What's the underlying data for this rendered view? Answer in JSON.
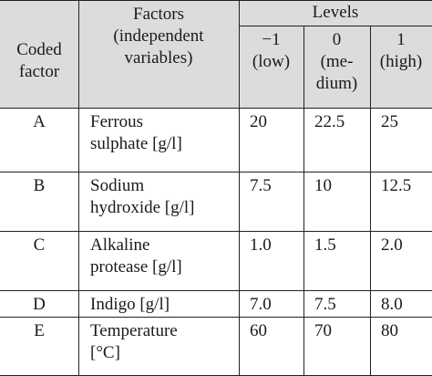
{
  "table": {
    "header": {
      "coded_factor": [
        "Coded",
        "factor"
      ],
      "factors": [
        "Factors",
        "(independent",
        "variables)"
      ],
      "levels": "Levels",
      "level_columns": [
        [
          "−1",
          "(low)"
        ],
        [
          "0",
          "(me-",
          "dium)"
        ],
        [
          "1",
          "(high)"
        ]
      ]
    },
    "rows": [
      {
        "code": "A",
        "factor": [
          "Ferrous",
          "sulphate [g/l]"
        ],
        "levels": [
          "20",
          "22.5",
          "25"
        ]
      },
      {
        "code": "B",
        "factor": [
          "Sodium",
          "hydroxide [g/l]"
        ],
        "levels": [
          "7.5",
          "10",
          "12.5"
        ]
      },
      {
        "code": "C",
        "factor": [
          "Alkaline",
          "protease [g/l]"
        ],
        "levels": [
          "1.0",
          "1.5",
          "2.0"
        ]
      },
      {
        "code": "D",
        "factor": [
          "Indigo [g/l]"
        ],
        "levels": [
          "7.0",
          "7.5",
          "8.0"
        ]
      },
      {
        "code": "E",
        "factor": [
          "Temperature",
          "[°C]"
        ],
        "levels": [
          "60",
          "70",
          "80"
        ]
      }
    ]
  }
}
